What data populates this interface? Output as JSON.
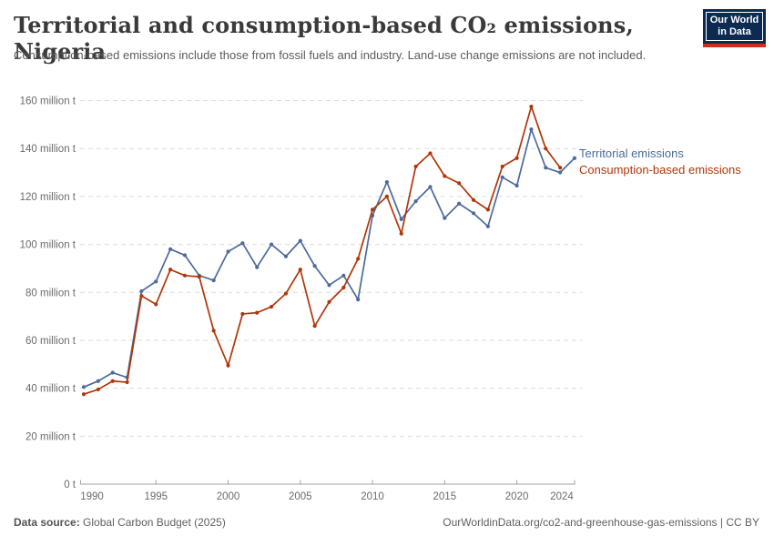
{
  "header": {
    "title": "Territorial and consumption-based CO₂ emissions, Nigeria",
    "subtitle": "Consumption-based emissions include those from fossil fuels and industry. Land-use change emissions are not included.",
    "logo": {
      "line1": "Our World",
      "line2": "in Data",
      "bg_color": "#0D2B52",
      "accent_color": "#CF2D23"
    }
  },
  "legend": {
    "territorial": "Territorial emissions",
    "consumption": "Consumption-based emissions"
  },
  "footer": {
    "source_label": "Data source:",
    "source_value": "Global Carbon Budget (2025)",
    "credit": "OurWorldinData.org/co2-and-greenhouse-gas-emissions | CC BY"
  },
  "colors": {
    "territorial": "#4C6A9C",
    "consumption": "#B13507",
    "grid": "#DBDBDB",
    "axis": "#A3A3A3",
    "tick_text": "#6B6B6B"
  },
  "chart_data": {
    "type": "line",
    "title": "Territorial and consumption-based CO₂ emissions, Nigeria",
    "unit": "million t",
    "x_range": [
      1990,
      2024
    ],
    "x_label_years": [
      1990,
      1995,
      2000,
      2005,
      2010,
      2015,
      2020,
      2024
    ],
    "ylim": [
      0,
      160
    ],
    "ytick_step": 20,
    "ytick_suffix": " million t",
    "ytick_zero_label": "0 t",
    "grid": "horizontal-dashed",
    "legend_position": "right-of-line-end",
    "series": [
      {
        "name": "Territorial emissions",
        "color": "#4C6A9C",
        "start_year": 1990,
        "values": [
          40.5,
          43,
          46.5,
          44.5,
          80.5,
          84.5,
          98,
          95.5,
          87,
          85,
          97,
          100.5,
          90.5,
          100,
          95,
          101.5,
          91,
          83,
          87,
          77,
          112,
          126,
          110.5,
          118,
          124,
          111,
          117,
          113,
          107.5,
          128,
          124.5,
          148,
          132,
          130,
          136
        ]
      },
      {
        "name": "Consumption-based emissions",
        "color": "#B13507",
        "start_year": 1990,
        "values": [
          37.5,
          39.5,
          43,
          42.5,
          78.5,
          75,
          89.5,
          87,
          86.5,
          64,
          49.5,
          71,
          71.5,
          74,
          79.5,
          89.5,
          66,
          76,
          82,
          94,
          114.5,
          120,
          104.5,
          132.5,
          138,
          128.5,
          125.5,
          118.5,
          114.5,
          132.5,
          136,
          157.5,
          140,
          132
        ]
      }
    ]
  }
}
